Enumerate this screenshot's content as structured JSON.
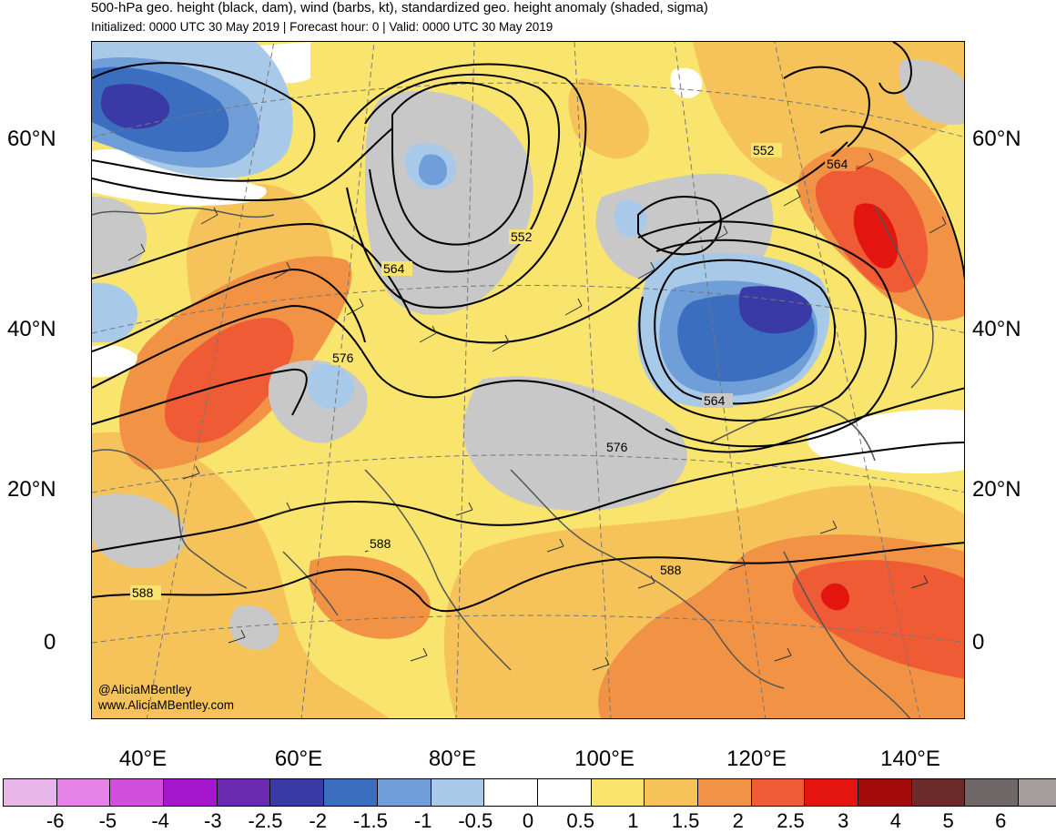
{
  "header": {
    "title": "500-hPa geo. height (black, dam), wind (barbs, kt), standardized geo. height anomaly (shaded, sigma)",
    "subtitle": "Initialized: 0000 UTC 30 May 2019 | Forecast hour: 0 | Valid: 0000 UTC 30 May 2019"
  },
  "axes": {
    "lat_labels_left": [
      "60°N",
      "40°N",
      "20°N",
      "0"
    ],
    "lat_labels_right": [
      "60°N",
      "40°N",
      "20°N",
      "0"
    ],
    "lon_labels": [
      "40°E",
      "60°E",
      "80°E",
      "100°E",
      "120°E",
      "140°E"
    ]
  },
  "contour_labels": [
    "552",
    "552",
    "564",
    "564",
    "576",
    "564",
    "576",
    "588",
    "588",
    "588"
  ],
  "credit": {
    "handle": "@AliciaMBentley",
    "website": "www.AliciaMBentley.com"
  },
  "colorbar": {
    "ticks": [
      "-6",
      "-5",
      "-4",
      "-3",
      "-2.5",
      "-2",
      "-1.5",
      "-1",
      "-0.5",
      "0",
      "0.5",
      "1",
      "1.5",
      "2",
      "2.5",
      "3",
      "4",
      "5",
      "6"
    ],
    "colors": [
      "#e8b6e8",
      "#e681e6",
      "#d24fdc",
      "#a516cc",
      "#6a2bb2",
      "#3a3aa6",
      "#3c6ec0",
      "#6f9ed8",
      "#a8cae8",
      "#ffffff",
      "#ffffff",
      "#f9e46e",
      "#f5c35a",
      "#f29245",
      "#ee5b34",
      "#e4140f",
      "#a40c0c",
      "#6b2b28",
      "#6f6868",
      "#a59c9c"
    ]
  },
  "colors": {
    "contour": "#000000",
    "coastline": "#555555",
    "neutral_gray": "#c8c8c8"
  }
}
